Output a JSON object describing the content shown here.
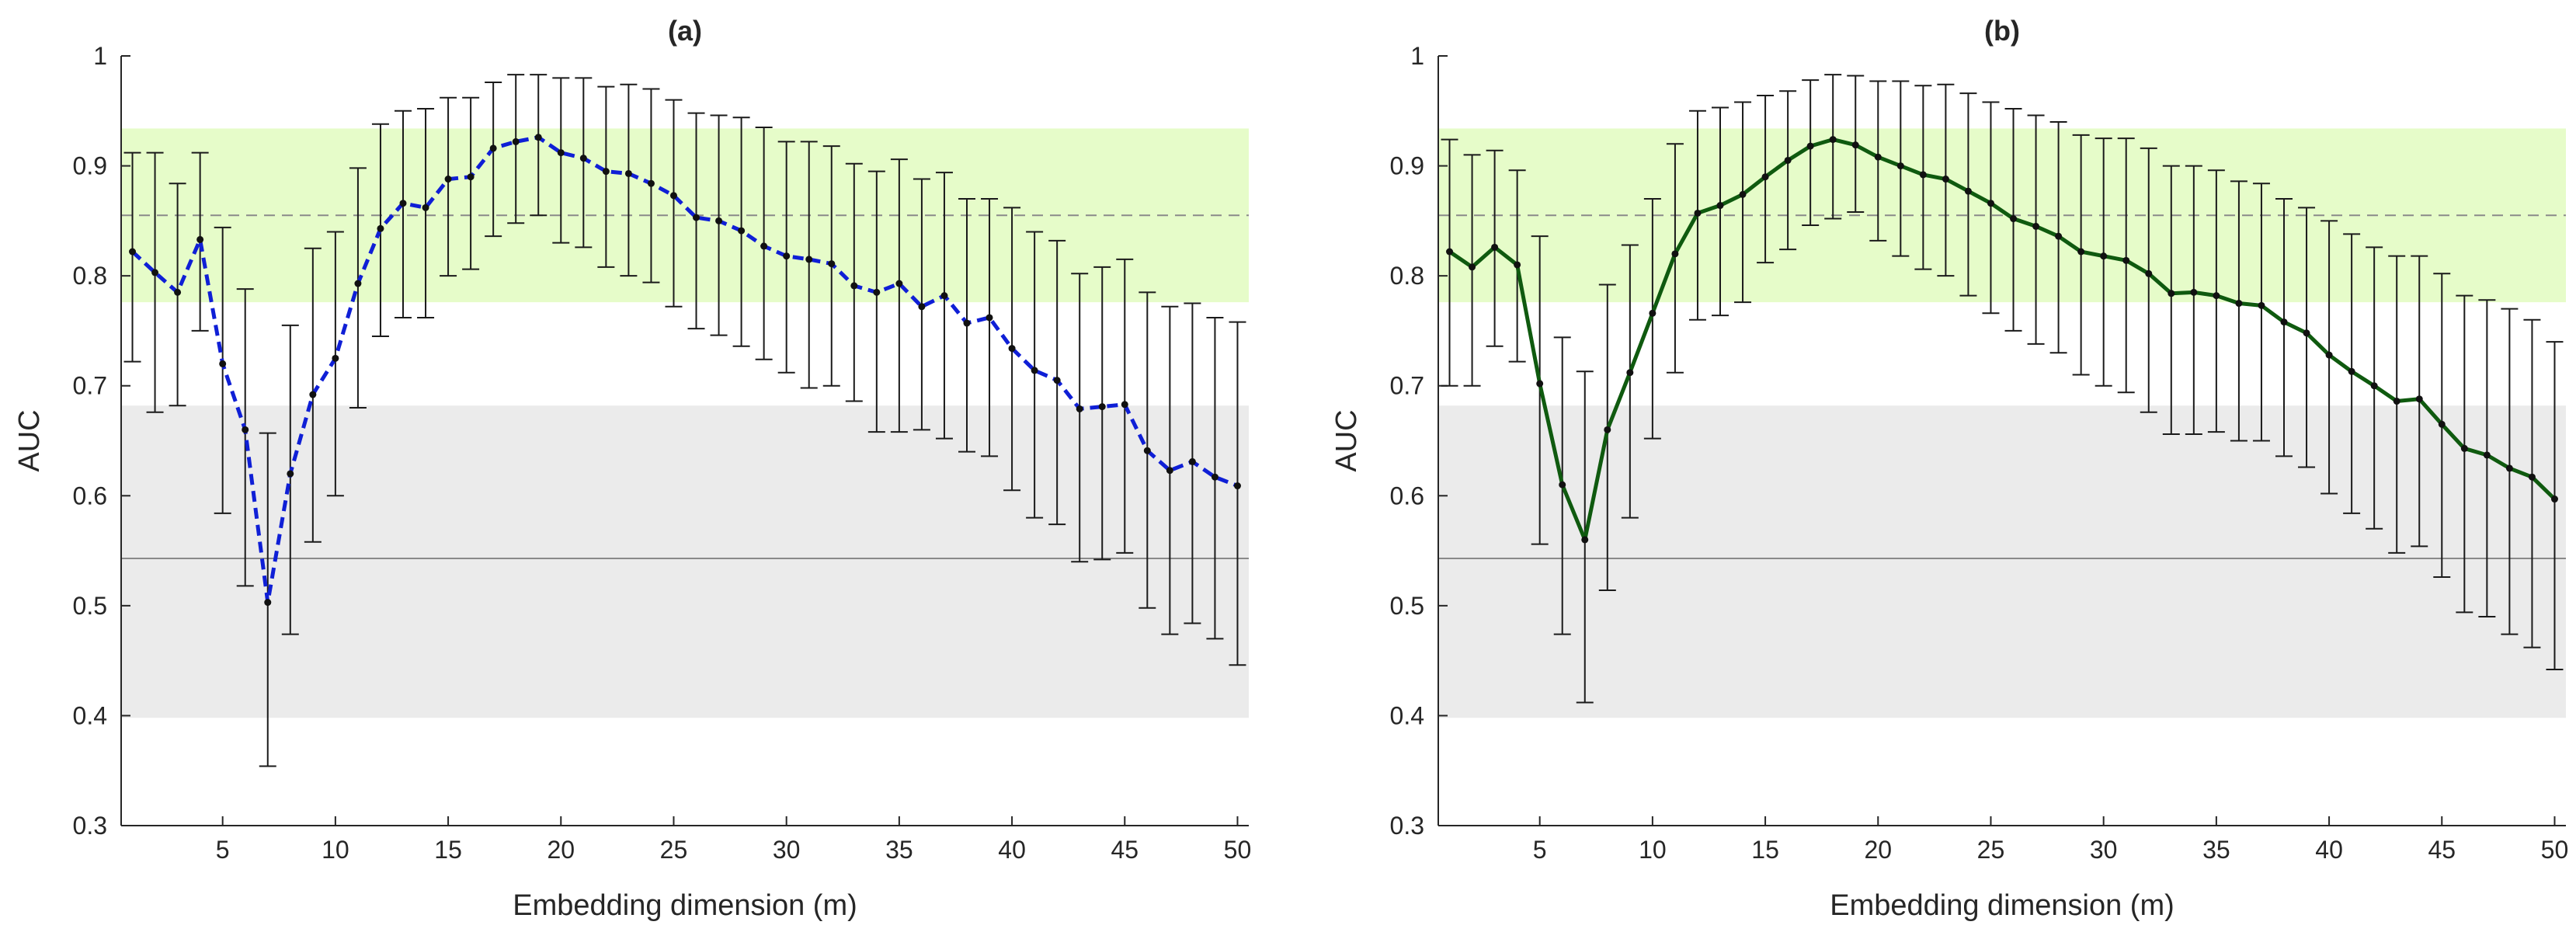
{
  "chart_data": [
    {
      "type": "line",
      "title": "(a)",
      "xlabel": "Embedding dimension (m)",
      "ylabel": "AUC",
      "xlim": [
        0.5,
        50.5
      ],
      "ylim": [
        0.3,
        1.0
      ],
      "xticks": [
        5,
        10,
        15,
        20,
        25,
        30,
        35,
        40,
        45,
        50
      ],
      "yticks": [
        0.3,
        0.4,
        0.5,
        0.6,
        0.7,
        0.8,
        0.9,
        1.0
      ],
      "ytick_labels": [
        "0.3",
        "0.4",
        "0.5",
        "0.6",
        "0.7",
        "0.8",
        "0.9",
        "1"
      ],
      "grid": false,
      "bands": [
        {
          "name": "green",
          "y0": 0.776,
          "y1": 0.934,
          "color": "#e6fcc9"
        },
        {
          "name": "gray",
          "y0": 0.398,
          "y1": 0.682,
          "color": "#ebebeb"
        }
      ],
      "reference_lines": [
        {
          "name": "dashed",
          "y": 0.855,
          "style": "dashed",
          "color": "#8a8a8a"
        },
        {
          "name": "solid",
          "y": 0.543,
          "style": "solid",
          "color": "#8a8a8a"
        }
      ],
      "series": [
        {
          "name": "AUC mean",
          "line_color": "#0f1fd6",
          "line_style": "dashed",
          "x": [
            1,
            2,
            3,
            4,
            5,
            6,
            7,
            8,
            9,
            10,
            11,
            12,
            13,
            14,
            15,
            16,
            17,
            18,
            19,
            20,
            21,
            22,
            23,
            24,
            25,
            26,
            27,
            28,
            29,
            30,
            31,
            32,
            33,
            34,
            35,
            36,
            37,
            38,
            39,
            40,
            41,
            42,
            43,
            44,
            45,
            46,
            47,
            48,
            49,
            50
          ],
          "y": [
            0.822,
            0.803,
            0.785,
            0.833,
            0.72,
            0.66,
            0.503,
            0.62,
            0.692,
            0.725,
            0.793,
            0.843,
            0.866,
            0.862,
            0.888,
            0.89,
            0.916,
            0.922,
            0.926,
            0.912,
            0.907,
            0.895,
            0.893,
            0.884,
            0.873,
            0.853,
            0.85,
            0.841,
            0.827,
            0.818,
            0.815,
            0.811,
            0.791,
            0.785,
            0.793,
            0.772,
            0.782,
            0.757,
            0.762,
            0.734,
            0.714,
            0.705,
            0.679,
            0.681,
            0.683,
            0.641,
            0.623,
            0.631,
            0.617,
            0.609
          ],
          "err_low": [
            0.722,
            0.676,
            0.682,
            0.75,
            0.584,
            0.518,
            0.354,
            0.474,
            0.558,
            0.6,
            0.68,
            0.745,
            0.762,
            0.762,
            0.8,
            0.806,
            0.836,
            0.848,
            0.855,
            0.83,
            0.826,
            0.808,
            0.8,
            0.794,
            0.772,
            0.752,
            0.746,
            0.736,
            0.724,
            0.712,
            0.698,
            0.7,
            0.686,
            0.658,
            0.658,
            0.66,
            0.652,
            0.64,
            0.636,
            0.605,
            0.58,
            0.574,
            0.54,
            0.542,
            0.548,
            0.498,
            0.474,
            0.484,
            0.47,
            0.446
          ],
          "err_high": [
            0.912,
            0.912,
            0.884,
            0.912,
            0.844,
            0.788,
            0.657,
            0.755,
            0.825,
            0.84,
            0.898,
            0.938,
            0.95,
            0.952,
            0.962,
            0.962,
            0.976,
            0.983,
            0.983,
            0.98,
            0.98,
            0.972,
            0.974,
            0.97,
            0.96,
            0.948,
            0.946,
            0.944,
            0.935,
            0.922,
            0.922,
            0.918,
            0.902,
            0.895,
            0.906,
            0.888,
            0.894,
            0.87,
            0.87,
            0.862,
            0.84,
            0.832,
            0.802,
            0.808,
            0.815,
            0.785,
            0.772,
            0.775,
            0.762,
            0.758
          ]
        }
      ]
    },
    {
      "type": "line",
      "title": "(b)",
      "xlabel": "Embedding dimension (m)",
      "ylabel": "AUC",
      "xlim": [
        0.5,
        50.5
      ],
      "ylim": [
        0.3,
        1.0
      ],
      "xticks": [
        5,
        10,
        15,
        20,
        25,
        30,
        35,
        40,
        45,
        50
      ],
      "yticks": [
        0.3,
        0.4,
        0.5,
        0.6,
        0.7,
        0.8,
        0.9,
        1.0
      ],
      "ytick_labels": [
        "0.3",
        "0.4",
        "0.5",
        "0.6",
        "0.7",
        "0.8",
        "0.9",
        "1"
      ],
      "grid": false,
      "bands": [
        {
          "name": "green",
          "y0": 0.776,
          "y1": 0.934,
          "color": "#e6fcc9"
        },
        {
          "name": "gray",
          "y0": 0.398,
          "y1": 0.682,
          "color": "#ebebeb"
        }
      ],
      "reference_lines": [
        {
          "name": "dashed",
          "y": 0.855,
          "style": "dashed",
          "color": "#8a8a8a"
        },
        {
          "name": "solid",
          "y": 0.543,
          "style": "solid",
          "color": "#8a8a8a"
        }
      ],
      "series": [
        {
          "name": "AUC mean",
          "line_color": "#0f5a0f",
          "line_style": "solid",
          "x": [
            1,
            2,
            3,
            4,
            5,
            6,
            7,
            8,
            9,
            10,
            11,
            12,
            13,
            14,
            15,
            16,
            17,
            18,
            19,
            20,
            21,
            22,
            23,
            24,
            25,
            26,
            27,
            28,
            29,
            30,
            31,
            32,
            33,
            34,
            35,
            36,
            37,
            38,
            39,
            40,
            41,
            42,
            43,
            44,
            45,
            46,
            47,
            48,
            49,
            50
          ],
          "y": [
            0.822,
            0.808,
            0.826,
            0.81,
            0.702,
            0.61,
            0.56,
            0.66,
            0.712,
            0.766,
            0.82,
            0.857,
            0.864,
            0.874,
            0.89,
            0.905,
            0.918,
            0.924,
            0.919,
            0.908,
            0.9,
            0.892,
            0.888,
            0.877,
            0.866,
            0.852,
            0.845,
            0.836,
            0.822,
            0.818,
            0.814,
            0.802,
            0.784,
            0.785,
            0.782,
            0.775,
            0.773,
            0.758,
            0.748,
            0.728,
            0.713,
            0.7,
            0.686,
            0.688,
            0.665,
            0.643,
            0.637,
            0.625,
            0.617,
            0.597
          ],
          "err_low": [
            0.7,
            0.7,
            0.736,
            0.722,
            0.556,
            0.474,
            0.412,
            0.514,
            0.58,
            0.652,
            0.712,
            0.76,
            0.764,
            0.776,
            0.812,
            0.824,
            0.846,
            0.852,
            0.858,
            0.832,
            0.818,
            0.806,
            0.8,
            0.782,
            0.766,
            0.75,
            0.738,
            0.73,
            0.71,
            0.7,
            0.694,
            0.676,
            0.656,
            0.656,
            0.658,
            0.65,
            0.65,
            0.636,
            0.626,
            0.602,
            0.584,
            0.57,
            0.548,
            0.554,
            0.526,
            0.494,
            0.49,
            0.474,
            0.462,
            0.442
          ],
          "err_high": [
            0.924,
            0.91,
            0.914,
            0.896,
            0.836,
            0.744,
            0.713,
            0.792,
            0.828,
            0.87,
            0.92,
            0.95,
            0.953,
            0.958,
            0.964,
            0.968,
            0.978,
            0.983,
            0.982,
            0.977,
            0.977,
            0.973,
            0.974,
            0.966,
            0.958,
            0.952,
            0.946,
            0.94,
            0.928,
            0.925,
            0.925,
            0.916,
            0.9,
            0.9,
            0.896,
            0.886,
            0.884,
            0.87,
            0.862,
            0.85,
            0.838,
            0.826,
            0.818,
            0.818,
            0.802,
            0.782,
            0.778,
            0.77,
            0.76,
            0.74
          ]
        }
      ]
    }
  ]
}
